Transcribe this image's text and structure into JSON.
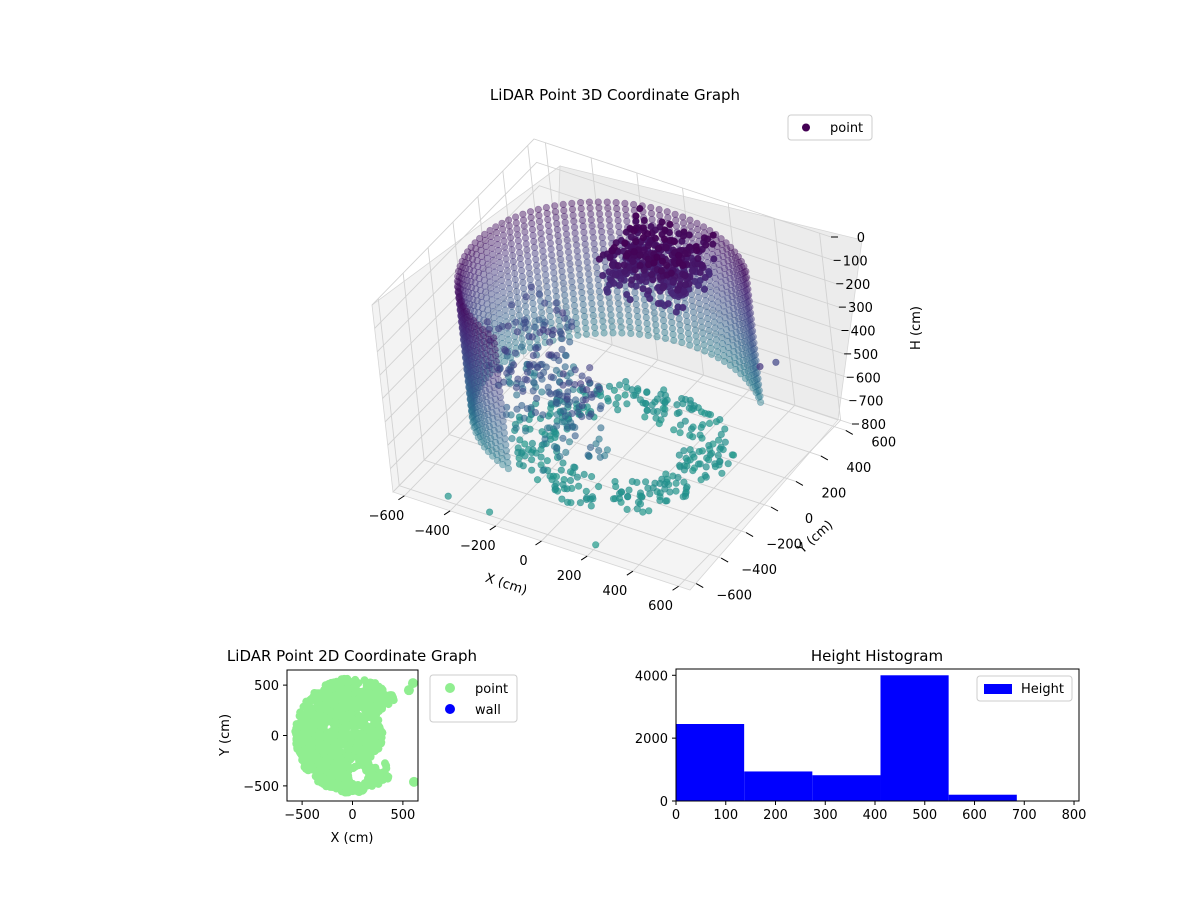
{
  "chart_data": [
    {
      "type": "scatter3d",
      "title": "LiDAR Point 3D Coordinate Graph",
      "xlabel": "X (cm)",
      "ylabel": "Y (cm)",
      "zlabel": "H (cm)",
      "xlim": [
        -650,
        650
      ],
      "ylim": [
        -650,
        650
      ],
      "zlim": [
        0,
        800
      ],
      "z_inverted": true,
      "x_ticks": [
        -600,
        -400,
        -200,
        0,
        200,
        400,
        600
      ],
      "y_ticks": [
        -600,
        -400,
        -200,
        0,
        200,
        400,
        600
      ],
      "z_ticks": [
        0,
        100,
        200,
        300,
        400,
        500,
        600,
        700,
        800
      ],
      "grid": true,
      "legend": {
        "position": "top-right",
        "entries": [
          {
            "label": "point",
            "color": "#440154"
          }
        ]
      },
      "colormap": "viridis",
      "structure": {
        "cylinder": {
          "radius": 560,
          "arc_start_deg": 40,
          "arc_end_deg": 250,
          "h_top": 60,
          "h_bottom": 620
        },
        "roof_cluster": {
          "x_range": [
            -100,
            250
          ],
          "y_range": [
            150,
            450
          ],
          "h_range": [
            0,
            200
          ]
        },
        "floor_ring": {
          "radius": 430,
          "h": 750
        },
        "outliers": [
          {
            "x": -420,
            "y": -620,
            "h": 760
          },
          {
            "x": -240,
            "y": -620,
            "h": 770
          },
          {
            "x": 200,
            "y": -580,
            "h": 790
          },
          {
            "x": 640,
            "y": 50,
            "h": 230
          },
          {
            "x": 620,
            "y": 200,
            "h": 300
          }
        ]
      }
    },
    {
      "type": "scatter",
      "title": "LiDAR Point 2D Coordinate Graph",
      "xlabel": "X (cm)",
      "ylabel": "Y (cm)",
      "xlim": [
        -650,
        650
      ],
      "ylim": [
        -650,
        650
      ],
      "x_ticks": [
        -500,
        0,
        500
      ],
      "y_ticks": [
        -500,
        0,
        500
      ],
      "legend": {
        "position": "outside-right",
        "entries": [
          {
            "label": "point",
            "color": "#90ee90"
          },
          {
            "label": "wall",
            "color": "#0000ff"
          }
        ]
      },
      "point_color": "#90ee90",
      "disc_radius": 570,
      "gap_arc_deg": [
        -40,
        40
      ],
      "notches": [
        {
          "x": 60,
          "y": -400,
          "r": 90
        },
        {
          "x": 240,
          "y": -250,
          "r": 70
        },
        {
          "x": 420,
          "y": -350,
          "r": 60
        }
      ],
      "extra_points": [
        {
          "x": 600,
          "y": 520
        },
        {
          "x": 560,
          "y": 450
        },
        {
          "x": 610,
          "y": -460
        }
      ]
    },
    {
      "type": "histogram",
      "title": "Height Histogram",
      "xlim": [
        0,
        810
      ],
      "ylim": [
        0,
        4200
      ],
      "x_ticks": [
        0,
        100,
        200,
        300,
        400,
        500,
        600,
        700,
        800
      ],
      "y_ticks": [
        0,
        2000,
        4000
      ],
      "bar_color": "#0000ff",
      "bins": [
        {
          "start": 0,
          "end": 137,
          "count": 2450
        },
        {
          "start": 137,
          "end": 274,
          "count": 940
        },
        {
          "start": 274,
          "end": 411,
          "count": 820
        },
        {
          "start": 411,
          "end": 548,
          "count": 4000
        },
        {
          "start": 548,
          "end": 685,
          "count": 200
        },
        {
          "start": 685,
          "end": 810,
          "count": 0
        }
      ],
      "legend": {
        "position": "top-right",
        "entries": [
          {
            "label": "Height",
            "color": "#0000ff"
          }
        ]
      }
    }
  ]
}
